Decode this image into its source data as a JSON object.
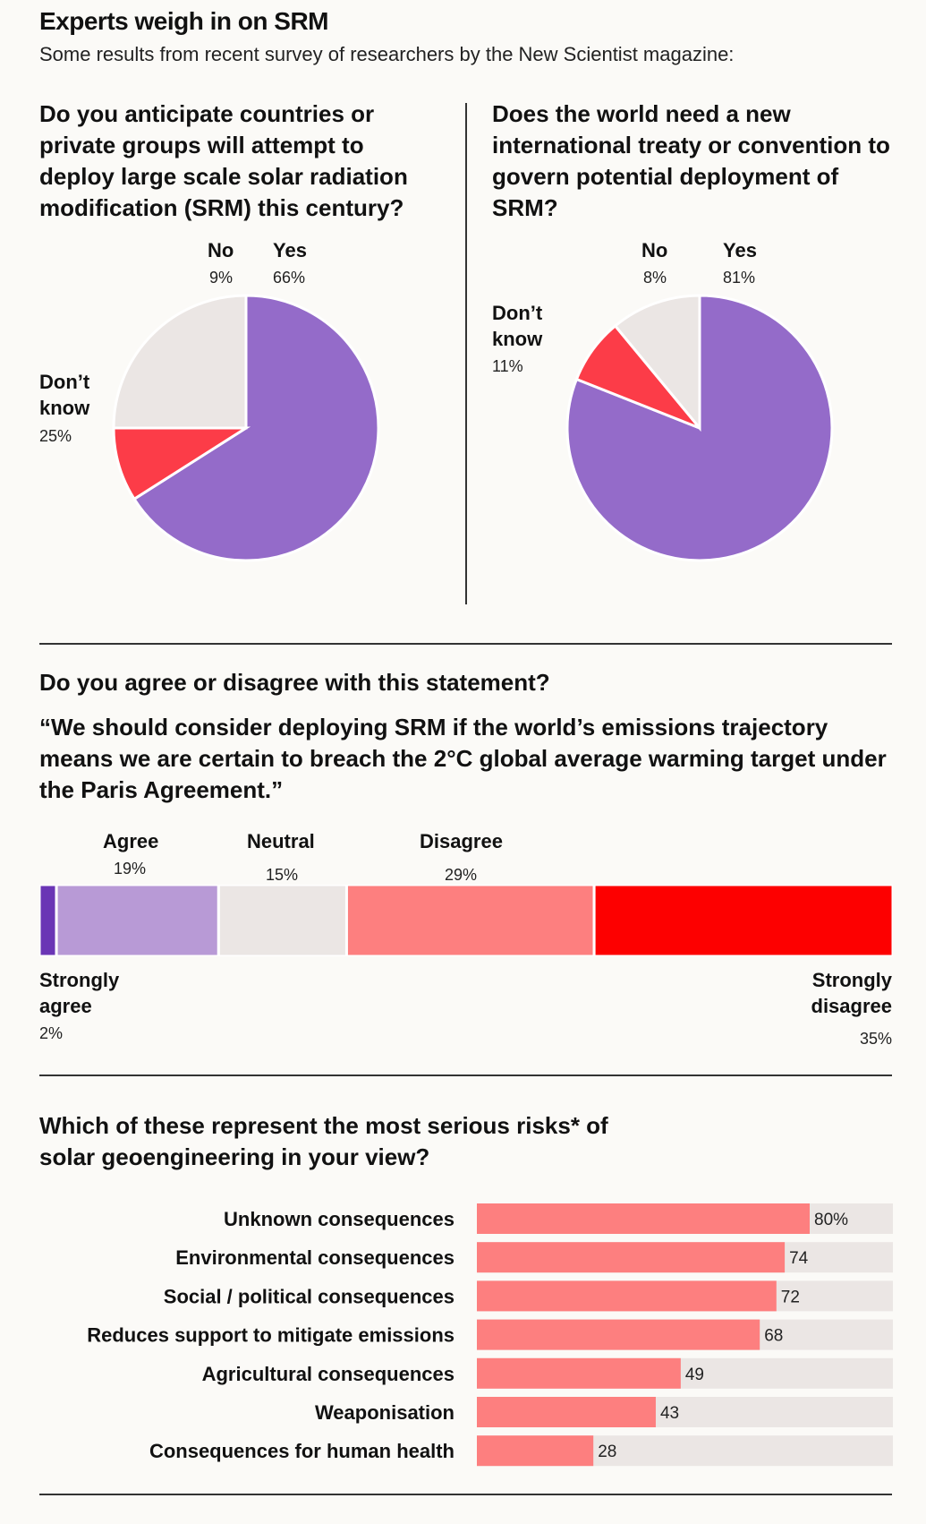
{
  "header": {
    "title": "Experts weigh in on SRM",
    "subtitle": "Some results from recent survey of researchers by the New Scientist magazine:"
  },
  "colors": {
    "purple": "#946bc9",
    "light_grey": "#ebe6e4",
    "red": "#fc3c48",
    "strong_purple": "#6a35b5",
    "light_purple": "#b89ad6",
    "salmon": "#fd7f7f",
    "strong_red": "#fd0000",
    "track": "#ebe6e4"
  },
  "q1": {
    "question": "Do you anticipate countries or private groups will attempt to deploy large scale solar radiation modification (SRM) this century?",
    "labels": {
      "no": "No",
      "no_pct": "9%",
      "yes": "Yes",
      "yes_pct": "66%",
      "dont_know_1": "Don’t",
      "dont_know_2": "know",
      "dont_know_pct": "25%"
    }
  },
  "q2": {
    "question": "Does the world need a new international treaty or convention to govern potential deployment of SRM?",
    "labels": {
      "no": "No",
      "no_pct": "8%",
      "yes": "Yes",
      "yes_pct": "81%",
      "dont_know_1": "Don’t",
      "dont_know_2": "know",
      "dont_know_pct": "11%"
    }
  },
  "q3": {
    "question": "Do you agree or disagree with this statement?",
    "statement": "“We should consider deploying SRM if the world’s emissions trajectory means we are certain to breach the 2°C global average warming target under the Paris Agreement.”",
    "labels": {
      "agree": "Agree",
      "agree_pct": "19%",
      "neutral": "Neutral",
      "neutral_pct": "15%",
      "disagree": "Disagree",
      "disagree_pct": "29%",
      "strongly_agree_1": "Strongly",
      "strongly_agree_2": "agree",
      "strongly_agree_pct": "2%",
      "strongly_disagree_1": "Strongly",
      "strongly_disagree_2": "disagree",
      "strongly_disagree_pct": "35%"
    }
  },
  "q4": {
    "question": "Which of these represent the most serious risks* of solar geoengineering in your view?"
  },
  "chart_data": [
    {
      "type": "pie",
      "categories": [
        "Yes",
        "No",
        "Don’t know"
      ],
      "values": [
        66,
        9,
        25
      ],
      "colors": [
        "#946bc9",
        "#fc3c48",
        "#ebe6e4"
      ]
    },
    {
      "type": "pie",
      "categories": [
        "Yes",
        "No",
        "Don’t know"
      ],
      "values": [
        81,
        8,
        11
      ],
      "colors": [
        "#946bc9",
        "#fc3c48",
        "#ebe6e4"
      ]
    },
    {
      "type": "bar",
      "orientation": "stacked-horizontal",
      "categories": [
        "Strongly agree",
        "Agree",
        "Neutral",
        "Disagree",
        "Strongly disagree"
      ],
      "values": [
        2,
        19,
        15,
        29,
        35
      ],
      "colors": [
        "#6a35b5",
        "#b89ad6",
        "#ebe6e4",
        "#fd7f7f",
        "#fd0000"
      ]
    },
    {
      "type": "bar",
      "orientation": "horizontal",
      "categories": [
        "Unknown consequences",
        "Environmental consequences",
        "Social / political consequences",
        "Reduces support to mitigate emissions",
        "Agricultural consequences",
        "Weaponisation",
        "Consequences for human health"
      ],
      "values": [
        80,
        74,
        72,
        68,
        49,
        43,
        28
      ],
      "value_labels": [
        "80%",
        "74",
        "72",
        "68",
        "49",
        "43",
        "28"
      ],
      "xlim": [
        0,
        100
      ]
    }
  ]
}
